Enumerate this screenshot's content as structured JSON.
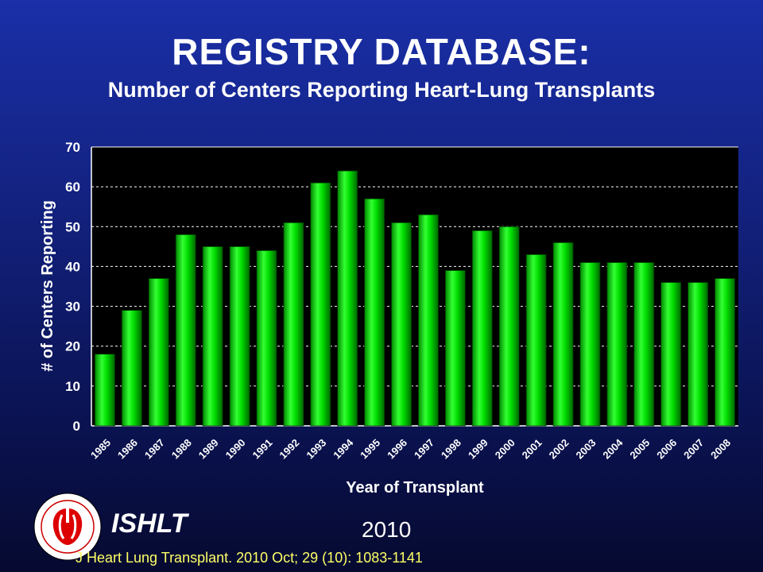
{
  "slide": {
    "title": "REGISTRY DATABASE:",
    "subtitle": "Number of Centers Reporting Heart-Lung Transplants",
    "org": "ISHLT",
    "year": "2010",
    "citation": "J Heart Lung Transplant. 2010 Oct; 29 (10): 1083-1141"
  },
  "chart_data": {
    "type": "bar",
    "categories": [
      "1985",
      "1986",
      "1987",
      "1988",
      "1989",
      "1990",
      "1991",
      "1992",
      "1993",
      "1994",
      "1995",
      "1996",
      "1997",
      "1998",
      "1999",
      "2000",
      "2001",
      "2002",
      "2003",
      "2004",
      "2005",
      "2006",
      "2007",
      "2008"
    ],
    "values": [
      18,
      29,
      37,
      48,
      45,
      45,
      44,
      51,
      61,
      64,
      57,
      51,
      53,
      39,
      49,
      50,
      43,
      46,
      41,
      41,
      41,
      36,
      36,
      37
    ],
    "xlabel": "Year of Transplant",
    "ylabel": "# of Centers Reporting",
    "ylim": [
      0,
      70
    ],
    "yticks": [
      0,
      10,
      20,
      30,
      40,
      50,
      60,
      70
    ],
    "grid": true,
    "colors": {
      "bar": "#00dd00",
      "plot_bg": "#000000",
      "grid": "#ffffff"
    }
  }
}
